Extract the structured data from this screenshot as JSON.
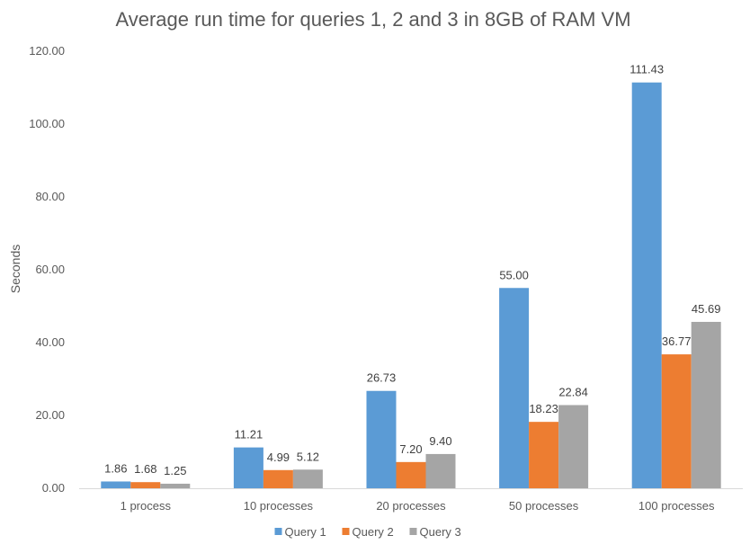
{
  "chart_data": {
    "type": "bar",
    "title": "Average run time for queries 1, 2 and 3 in 8GB of RAM VM",
    "xlabel": "",
    "ylabel": "Seconds",
    "categories": [
      "1 process",
      "10 processes",
      "20 processes",
      "50 processes",
      "100 processes"
    ],
    "series": [
      {
        "name": "Query 1",
        "color": "#5B9BD5",
        "values": [
          1.86,
          11.21,
          26.73,
          55.0,
          111.43
        ],
        "labels": [
          "1.86",
          "11.21",
          "26.73",
          "55.00",
          "111.43"
        ]
      },
      {
        "name": "Query 2",
        "color": "#ED7D31",
        "values": [
          1.68,
          4.99,
          7.2,
          18.23,
          36.77
        ],
        "labels": [
          "1.68",
          "4.99",
          "7.20",
          "18.23",
          "36.77"
        ]
      },
      {
        "name": "Query 3",
        "color": "#A5A5A5",
        "values": [
          1.25,
          5.12,
          9.4,
          22.84,
          45.69
        ],
        "labels": [
          "1.25",
          "5.12",
          "9.40",
          "22.84",
          "45.69"
        ]
      }
    ],
    "ylim": [
      0,
      120
    ],
    "yticks": [
      "0.00",
      "20.00",
      "40.00",
      "60.00",
      "80.00",
      "100.00",
      "120.00"
    ],
    "grid": false,
    "legend_position": "bottom"
  }
}
